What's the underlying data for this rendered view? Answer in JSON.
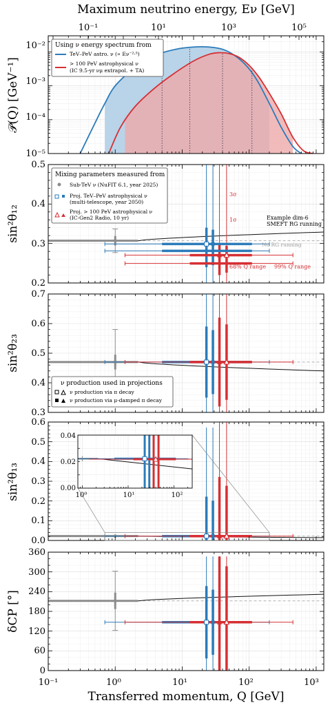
{
  "colors": {
    "astro": "#2b7bba",
    "astro_fill": "#b9d3e8",
    "uhe": "#d62f33",
    "uhe_fill": "#eeaaaa",
    "nufit": "#8c8c8c",
    "smeft": "#111111",
    "norg": "#b0b0b0",
    "overlap": "#b78fa2"
  },
  "top_axis": {
    "title": "Maximum neutrino energy, Eν [GeV]",
    "ticks": [
      "10⁻¹",
      "10¹",
      "10³",
      "10⁵"
    ]
  },
  "x_axis": {
    "title": "Transferred momentum, Q [GeV]",
    "ticks": [
      "10⁻¹",
      "10⁰",
      "10¹",
      "10²",
      "10³"
    ]
  },
  "chart_data": [
    {
      "type": "area",
      "ylabel": "𝒫(Q) [GeV⁻¹]",
      "yscale": "log",
      "xscale": "log",
      "xlim": [
        0.1,
        1300
      ],
      "ylim": [
        1e-05,
        0.03
      ],
      "yticks": [
        "10⁻⁵",
        "10⁻⁴",
        "10⁻³",
        "10⁻²"
      ],
      "legend_title": "Using ν energy spectrum from",
      "legend_entries": [
        "TeV–PeV astro. ν (∝ Eν⁻²·⁵)",
        "> 100 PeV astrophysical ν",
        "(IC 9.5-yr νμ extrapol. + TA)"
      ],
      "series": [
        {
          "name": "TeV–PeV astro. ν",
          "x": [
            0.3,
            0.5,
            0.7,
            1,
            2,
            4,
            8,
            15,
            25,
            40,
            60,
            90,
            130,
            200,
            300,
            450,
            600
          ],
          "y": [
            1e-05,
            8e-05,
            0.0003,
            0.001,
            0.0035,
            0.008,
            0.012,
            0.014,
            0.014,
            0.012,
            0.008,
            0.004,
            0.0015,
            0.0003,
            6e-05,
            1.6e-05,
            1e-05
          ],
          "fill_range": [
            0.7,
            200
          ]
        },
        {
          "name": "> 100 PeV astrophysical ν",
          "x": [
            0.8,
            1.2,
            2,
            4,
            8,
            15,
            25,
            35,
            50,
            70,
            100,
            140,
            200,
            300,
            450,
            650,
            900
          ],
          "y": [
            1e-05,
            6e-05,
            0.00025,
            0.0009,
            0.0025,
            0.0055,
            0.0085,
            0.0095,
            0.009,
            0.007,
            0.004,
            0.0018,
            0.0006,
            0.00015,
            3e-05,
            1.2e-05,
            1e-05
          ],
          "fill_range": [
            1.4,
            450
          ]
        }
      ],
      "range_markers_x": [
        5,
        13,
        110
      ]
    },
    {
      "type": "scatter",
      "ylabel": "sin²θ₁₂",
      "ylim": [
        0.2,
        0.5
      ],
      "yticks": [
        "0.2",
        "0.3",
        "0.4",
        "0.5"
      ],
      "legend_title": "Mixing parameters measured from",
      "legend_entries": [
        "Sub-TeV ν (NuFIT 6.1, year 2025)",
        "Proj. TeV–PeV astrophysical ν",
        "(multi-telescope, year 2050)",
        "Proj. > 100 PeV astrophysical ν",
        "(IC-Gen2 Radio, 10 yr)"
      ],
      "annotations": [
        "3σ",
        "1σ",
        "Example dim-6",
        "SMEFT RG running",
        "No RG running",
        "68% Q range",
        "99% Q range"
      ],
      "nufit": {
        "x": 1,
        "y": 0.307,
        "err1": 0.012,
        "err3": 0.03
      },
      "astro": {
        "x": 23,
        "y": 0.29,
        "err1": 0.05,
        "err3": 0.25
      },
      "uhe": {
        "x": 40,
        "y": 0.26,
        "err1": 0.04,
        "err3": 0.25
      }
    },
    {
      "type": "scatter",
      "ylabel": "sin²θ₂₃",
      "ylim": [
        0.3,
        0.7
      ],
      "yticks": [
        "0.3",
        "0.4",
        "0.5",
        "0.6",
        "0.7"
      ],
      "legend_title": "ν production used in projections",
      "legend_entries": [
        "ν production via π decay",
        "ν production via μ-damped π decay"
      ],
      "nufit": {
        "x": 1,
        "y": 0.47,
        "err1": 0.025,
        "err3": 0.11
      },
      "astro": {
        "x": 23,
        "y": 0.47,
        "err1": 0.12,
        "err3": 0.35
      },
      "uhe": {
        "x": 40,
        "y": 0.47,
        "err1": 0.15,
        "err3": 0.35
      }
    },
    {
      "type": "scatter",
      "ylabel": "sin²θ₁₃",
      "ylim": [
        0.0,
        0.6
      ],
      "yticks": [
        "0.0",
        "0.1",
        "0.2",
        "0.3",
        "0.4",
        "0.5",
        "0.6"
      ],
      "inset": {
        "xlim": [
          0.8,
          250
        ],
        "ylim": [
          0.0,
          0.04
        ],
        "yticks": [
          "0.00",
          "0.02",
          "0.04"
        ],
        "xticks": [
          "10⁰",
          "10¹",
          "10²"
        ]
      },
      "nufit": {
        "x": 1,
        "y": 0.0222,
        "err1": 0.0006,
        "err3": 0.002
      },
      "astro": {
        "x": 23,
        "y": 0.022,
        "err1": 0.2,
        "err3": 0.55
      },
      "uhe": {
        "x": 40,
        "y": 0.022,
        "err1": 0.3,
        "err3": 0.6
      }
    },
    {
      "type": "scatter",
      "ylabel": "δCP [°]",
      "ylim": [
        0,
        360
      ],
      "yticks": [
        "0",
        "60",
        "120",
        "180",
        "240",
        "300",
        "360"
      ],
      "nufit": {
        "x": 1,
        "y": 212,
        "err1": 25,
        "err3": 90
      },
      "astro": {
        "x": 23,
        "y": 147,
        "err1": 110,
        "err3": 200
      },
      "uhe": {
        "x": 40,
        "y": 147,
        "err1": 200,
        "err3": 200
      }
    }
  ]
}
